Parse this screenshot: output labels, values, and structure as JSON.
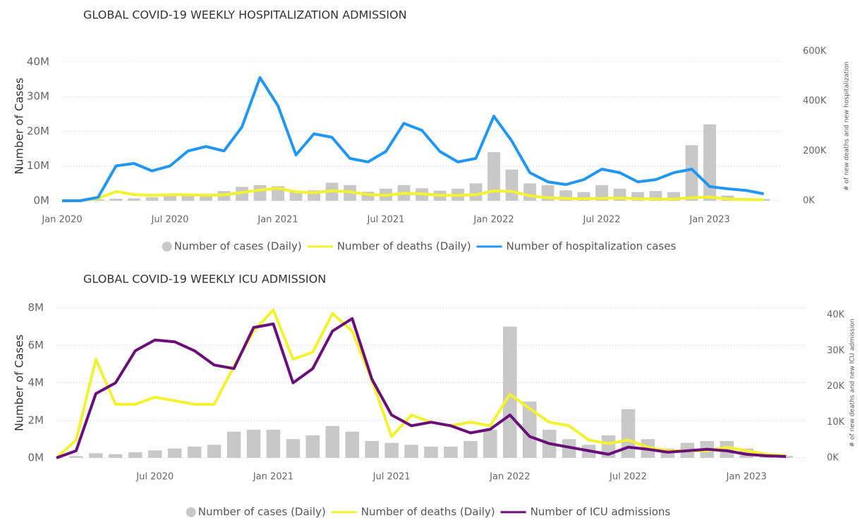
{
  "chart_data": [
    {
      "type": "combo",
      "title": "GLOBAL COVID-19 WEEKLY HOSPITALIZATION ADMISSION",
      "ylabel": "Number of Cases",
      "y2label": "# of new deaths and new hospitalization",
      "x": [
        "2020-01",
        "2020-02",
        "2020-03",
        "2020-04",
        "2020-05",
        "2020-06",
        "2020-07",
        "2020-08",
        "2020-09",
        "2020-10",
        "2020-11",
        "2020-12",
        "2021-01",
        "2021-02",
        "2021-03",
        "2021-04",
        "2021-05",
        "2021-06",
        "2021-07",
        "2021-08",
        "2021-09",
        "2021-10",
        "2021-11",
        "2021-12",
        "2022-01",
        "2022-02",
        "2022-03",
        "2022-04",
        "2022-05",
        "2022-06",
        "2022-07",
        "2022-08",
        "2022-09",
        "2022-10",
        "2022-11",
        "2022-12",
        "2023-01",
        "2023-02",
        "2023-03",
        "2023-04"
      ],
      "xlim": [
        "2020-01",
        "2023-05"
      ],
      "xticks": [
        {
          "value": "2020-01",
          "label": "Jan 2020"
        },
        {
          "value": "2020-07",
          "label": "Jul 2020"
        },
        {
          "value": "2021-01",
          "label": "Jan 2021"
        },
        {
          "value": "2021-07",
          "label": "Jul 2021"
        },
        {
          "value": "2022-01",
          "label": "Jan 2022"
        },
        {
          "value": "2022-07",
          "label": "Jul 2022"
        },
        {
          "value": "2023-01",
          "label": "Jan 2023"
        }
      ],
      "ylim": [
        0,
        43000000
      ],
      "yticks": [
        {
          "value": 0,
          "label": "0M"
        },
        {
          "value": 10000000,
          "label": "10M"
        },
        {
          "value": 20000000,
          "label": "20M"
        },
        {
          "value": 30000000,
          "label": "30M"
        },
        {
          "value": 40000000,
          "label": "40M"
        }
      ],
      "y2lim": [
        0,
        600000
      ],
      "y2ticks": [
        {
          "value": 0,
          "label": "0K"
        },
        {
          "value": 200000,
          "label": "200K"
        },
        {
          "value": 400000,
          "label": "400K"
        },
        {
          "value": 600000,
          "label": "600K"
        }
      ],
      "grid": true,
      "series": [
        {
          "name": "Number of cases (Daily)",
          "kind": "bar",
          "axis": "y",
          "color": "#c8c8c8",
          "values": [
            0,
            50000,
            400000,
            600000,
            700000,
            1000000,
            1600000,
            1800000,
            2000000,
            2800000,
            4000000,
            4500000,
            4200000,
            2600000,
            3000000,
            5200000,
            4500000,
            2600000,
            3500000,
            4500000,
            3600000,
            2900000,
            3500000,
            5000000,
            14000000,
            9000000,
            5000000,
            4500000,
            3000000,
            2500000,
            4500000,
            3500000,
            2500000,
            2800000,
            2500000,
            16000000,
            22000000,
            1500000,
            800000,
            500000
          ]
        },
        {
          "name": "Number of deaths (Daily)",
          "kind": "line",
          "axis": "y2",
          "color": "#f2f230",
          "values": [
            0,
            0,
            10000,
            37000,
            25000,
            22000,
            24000,
            24000,
            22000,
            24000,
            33000,
            43000,
            50000,
            36000,
            32000,
            40000,
            36000,
            25000,
            22000,
            30000,
            28000,
            22000,
            22000,
            24000,
            40000,
            38000,
            20000,
            12000,
            9000,
            8000,
            10000,
            11000,
            8000,
            7000,
            7000,
            12000,
            15000,
            7000,
            5000,
            4000
          ]
        },
        {
          "name": "Number of hospitalization cases",
          "kind": "line",
          "axis": "y2",
          "color": "#2196f3",
          "values": [
            0,
            0,
            14000,
            140000,
            150000,
            120000,
            140000,
            200000,
            218000,
            200000,
            297000,
            495000,
            382000,
            184000,
            269000,
            255000,
            170000,
            156000,
            198000,
            311000,
            283000,
            198000,
            156000,
            170000,
            340000,
            240000,
            113000,
            76000,
            65000,
            85000,
            127000,
            113000,
            76000,
            85000,
            113000,
            127000,
            57000,
            48000,
            42000,
            28000
          ]
        }
      ]
    },
    {
      "type": "combo",
      "title": "GLOBAL COVID-19 WEEKLY ICU ADMISSION",
      "ylabel": "Number of Cases",
      "y2label": "# of new deaths and new ICU admission",
      "x": [
        "2020-02",
        "2020-03",
        "2020-04",
        "2020-05",
        "2020-06",
        "2020-07",
        "2020-08",
        "2020-09",
        "2020-10",
        "2020-11",
        "2020-12",
        "2021-01",
        "2021-02",
        "2021-03",
        "2021-04",
        "2021-05",
        "2021-06",
        "2021-07",
        "2021-08",
        "2021-09",
        "2021-10",
        "2021-11",
        "2021-12",
        "2022-01",
        "2022-02",
        "2022-03",
        "2022-04",
        "2022-05",
        "2022-06",
        "2022-07",
        "2022-08",
        "2022-09",
        "2022-10",
        "2022-11",
        "2022-12",
        "2023-01",
        "2023-02",
        "2023-03"
      ],
      "xlim": [
        "2020-02",
        "2023-04"
      ],
      "xticks": [
        {
          "value": "2020-07",
          "label": "Jul 2020"
        },
        {
          "value": "2021-01",
          "label": "Jan 2021"
        },
        {
          "value": "2021-07",
          "label": "Jul 2021"
        },
        {
          "value": "2022-01",
          "label": "Jan 2022"
        },
        {
          "value": "2022-07",
          "label": "Jul 2022"
        },
        {
          "value": "2023-01",
          "label": "Jan 2023"
        }
      ],
      "ylim": [
        0,
        8000000
      ],
      "yticks": [
        {
          "value": 0,
          "label": "0M"
        },
        {
          "value": 2000000,
          "label": "2M"
        },
        {
          "value": 4000000,
          "label": "4M"
        },
        {
          "value": 6000000,
          "label": "6M"
        },
        {
          "value": 8000000,
          "label": "8M"
        }
      ],
      "y2lim": [
        0,
        42000
      ],
      "y2ticks": [
        {
          "value": 0,
          "label": "0K"
        },
        {
          "value": 10000,
          "label": "10K"
        },
        {
          "value": 20000,
          "label": "20K"
        },
        {
          "value": 30000,
          "label": "30K"
        },
        {
          "value": 40000,
          "label": "40K"
        }
      ],
      "grid": true,
      "series": [
        {
          "name": "Number of cases (Daily)",
          "kind": "bar",
          "axis": "y",
          "color": "#c8c8c8",
          "values": [
            0,
            100000,
            250000,
            200000,
            300000,
            400000,
            500000,
            600000,
            700000,
            1400000,
            1500000,
            1500000,
            1000000,
            1200000,
            1700000,
            1400000,
            900000,
            800000,
            700000,
            600000,
            600000,
            900000,
            1500000,
            7000000,
            3000000,
            1500000,
            1000000,
            700000,
            1200000,
            2600000,
            1000000,
            500000,
            800000,
            900000,
            900000,
            500000,
            200000,
            100000
          ]
        },
        {
          "name": "Number of deaths (Daily)",
          "kind": "line",
          "axis": "y2",
          "color": "#f2f230",
          "values": [
            0,
            5000,
            27600,
            15000,
            15000,
            17000,
            16000,
            15000,
            15000,
            25600,
            35500,
            41400,
            27600,
            29600,
            40400,
            35500,
            21700,
            6000,
            12000,
            10000,
            9000,
            10000,
            9000,
            17800,
            13800,
            10000,
            9000,
            5000,
            4000,
            5000,
            3000,
            2000,
            2000,
            2000,
            3000,
            2000,
            1000,
            600
          ]
        },
        {
          "name": "Number of ICU admissions",
          "kind": "line",
          "axis": "y2",
          "color": "#6a0f7a",
          "values": [
            0,
            2000,
            18000,
            21000,
            30000,
            33000,
            32500,
            30000,
            26000,
            25000,
            36500,
            37500,
            21000,
            25000,
            35500,
            39000,
            22000,
            12000,
            9000,
            10000,
            9000,
            7000,
            8000,
            12000,
            6000,
            4000,
            3000,
            2000,
            1000,
            3000,
            2400,
            1600,
            2000,
            2400,
            2000,
            1000,
            600,
            400
          ]
        }
      ]
    }
  ]
}
